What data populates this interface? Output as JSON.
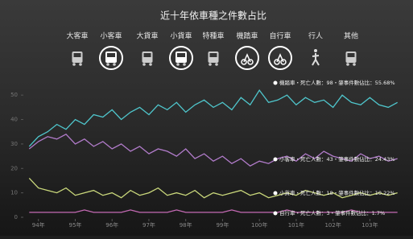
{
  "chart_data": {
    "type": "line",
    "title": "近十年依車種之件數占比",
    "icon_labels": [
      "大客車",
      "小客車",
      "大貨車",
      "小貨車",
      "特種車",
      "機踏車",
      "自行車",
      "行人",
      "其他"
    ],
    "x": [
      93.75,
      94,
      94.25,
      94.5,
      94.75,
      95,
      95.25,
      95.5,
      95.75,
      96,
      96.25,
      96.5,
      96.75,
      97,
      97.25,
      97.5,
      97.75,
      98,
      98.25,
      98.5,
      98.75,
      99,
      99.25,
      99.5,
      99.75,
      100,
      100.25,
      100.5,
      100.75,
      101,
      101.25,
      101.5,
      101.75,
      102,
      102.25,
      102.5,
      102.75,
      103,
      103.25,
      103.5,
      103.75
    ],
    "series": [
      {
        "name": "機踏車",
        "color": "#4fc6cc",
        "values": [
          29,
          33,
          35,
          38,
          36,
          40,
          38,
          42,
          41,
          44,
          40,
          43,
          45,
          42,
          46,
          44,
          47,
          43,
          46,
          48,
          45,
          47,
          44,
          49,
          46,
          52,
          47,
          48,
          50,
          46,
          49,
          47,
          48,
          45,
          50,
          47,
          46,
          49,
          46,
          45,
          47
        ]
      },
      {
        "name": "小客車",
        "color": "#b27ccb",
        "values": [
          28,
          31,
          33,
          32,
          34,
          30,
          32,
          29,
          31,
          28,
          30,
          27,
          29,
          26,
          28,
          27,
          25,
          28,
          24,
          26,
          23,
          25,
          22,
          24,
          21,
          23,
          22,
          24,
          25,
          23,
          26,
          24,
          27,
          25,
          24,
          23,
          26,
          24,
          25,
          23,
          24
        ]
      },
      {
        "name": "小貨車",
        "color": "#cbd97c",
        "values": [
          16,
          12,
          11,
          10,
          12,
          9,
          10,
          11,
          9,
          10,
          8,
          11,
          9,
          10,
          12,
          9,
          10,
          9,
          11,
          8,
          10,
          9,
          10,
          11,
          9,
          10,
          8,
          9,
          10,
          9,
          11,
          10,
          9,
          10,
          8,
          9,
          10,
          9,
          10,
          9,
          10
        ]
      },
      {
        "name": "自行車",
        "color": "#c46ab4",
        "values": [
          2,
          2,
          2,
          2,
          2,
          2,
          3,
          2,
          2,
          2,
          2,
          3,
          2,
          2,
          2,
          2,
          3,
          2,
          2,
          2,
          2,
          2,
          3,
          2,
          2,
          2,
          2,
          2,
          3,
          2,
          2,
          2,
          2,
          2,
          2,
          3,
          2,
          2,
          2,
          2,
          2
        ]
      }
    ],
    "annotations": [
      "機踏車・死亡人數：98・肇事件數佔比：55.68%",
      "小客車・死亡人數：43・肇事件數佔比：24.43%",
      "小貨車・死亡人數：18・肇事件數佔比：10.22%",
      "自行車・死亡人數：3・肇事件數佔比：1.7%"
    ],
    "xlim": [
      93.7,
      103.8
    ],
    "xticks": [
      {
        "value": 94,
        "label": "94年"
      },
      {
        "value": 95,
        "label": "95年"
      },
      {
        "value": 96,
        "label": "96年"
      },
      {
        "value": 97,
        "label": "97年"
      },
      {
        "value": 98,
        "label": "98年"
      },
      {
        "value": 99,
        "label": "99年"
      },
      {
        "value": 100,
        "label": "100年"
      },
      {
        "value": 101,
        "label": "101年"
      },
      {
        "value": 102,
        "label": "102年"
      },
      {
        "value": 103,
        "label": "103年"
      }
    ],
    "ylim": [
      0,
      55
    ],
    "yticks": [
      0,
      10,
      20,
      30,
      40,
      50
    ],
    "grid": false
  }
}
